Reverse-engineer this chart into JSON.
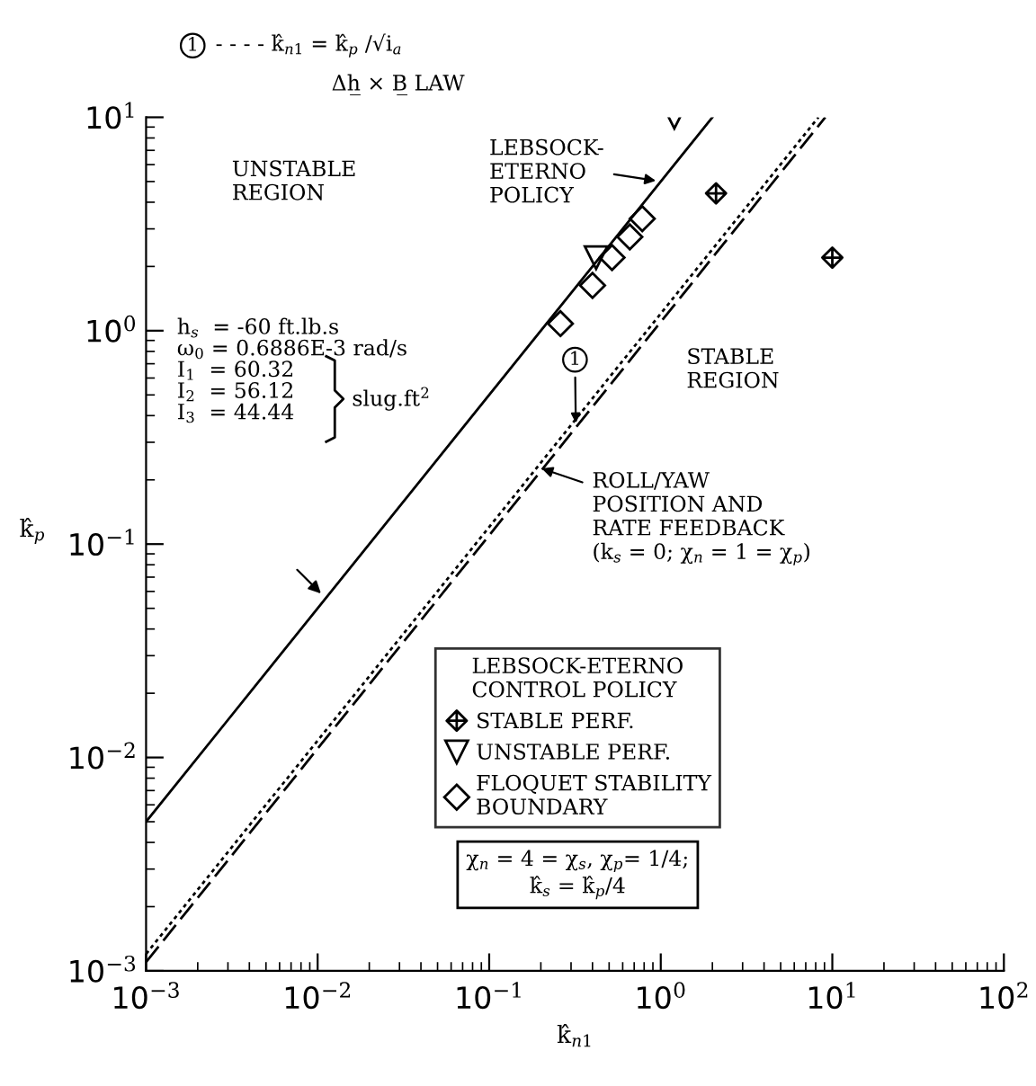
{
  "chart_data": {
    "type": "line",
    "xlabel": "k̂$_{n1}$",
    "ylabel": "k̂$_{p}$",
    "log": "xy",
    "xlim": [
      0.001,
      100
    ],
    "ylim": [
      0.001,
      10
    ],
    "xticks": [
      {
        "value": 0.001,
        "label": "10$^{−3}$"
      },
      {
        "value": 0.01,
        "label": "10$^{−2}$"
      },
      {
        "value": 0.1,
        "label": "10$^{−1}$"
      },
      {
        "value": 1,
        "label": "10$^{0}$"
      },
      {
        "value": 10,
        "label": "10$^{1}$"
      },
      {
        "value": 100,
        "label": "10$^{2}$"
      }
    ],
    "yticks": [
      {
        "value": 0.001,
        "label": "10$^{−3}$"
      },
      {
        "value": 0.01,
        "label": "10$^{−2}$"
      },
      {
        "value": 0.1,
        "label": "10$^{−1}$"
      },
      {
        "value": 1,
        "label": "10$^{0}$"
      },
      {
        "value": 10,
        "label": "10$^{1}$"
      }
    ],
    "grid": false,
    "legend": "bottom right",
    "legend_title": "LEBSOCK-ETERNO\nCONTROL POLICY",
    "series": [
      {
        "color": "#000000",
        "line_style": "solid",
        "x": [
          0.001,
          2
        ],
        "values": [
          0.005,
          10
        ]
      },
      {
        "color": "#000000",
        "line_style": "dashed",
        "x": [
          0.001,
          9.1
        ],
        "values": [
          0.0011,
          10
        ]
      },
      {
        "color": "#000000",
        "line_style": "dotted",
        "x": [
          0.001,
          8.3
        ],
        "values": [
          0.0012,
          10
        ]
      },
      {
        "type": "scatter",
        "name": "STABLE PERF.",
        "color": "#000000",
        "marker": "cross",
        "x": [
          2.1,
          10
        ],
        "values": [
          4.4,
          2.2
        ]
      },
      {
        "type": "scatter",
        "name": "UNSTABLE PERF.",
        "color": "#000000",
        "marker": "triangle",
        "x": [
          1.2,
          0.42
        ],
        "values": [
          10,
          2.2
        ]
      },
      {
        "type": "scatter",
        "name": "FLOQUET STABILITY\nBOUNDARY",
        "color": "#000000",
        "marker": "diamond",
        "x": [
          0.26,
          0.4,
          0.52,
          0.66,
          0.78
        ],
        "values": [
          1.08,
          1.63,
          2.2,
          2.75,
          3.35
        ]
      }
    ],
    "annotations": [
      "1",
      "- - - - k̂$_{n1}$ = k̂$_{p}$ /√i$_{a}$",
      "Δh̲ × B̲ LAW",
      "UNSTABLE\nREGION",
      "STABLE\nREGION",
      {
        "text": "LEBSOCK-\nETERNO\nPOLICY",
        "x": 1.0,
        "y": 5
      },
      {
        "text": "1",
        "x": 0.32,
        "y": 0.35
      },
      "ROLL/YAW\nPOSITION AND\nRATE FEEDBACK\n(k$_{s}$ = 0; χ$_{n}$ = 1 = χ$_{p}$)",
      "h$_{s}$  = -60 ft.lb.s\nω$_{0}$ = 0.6886E-3 rad/s\nI$_{1}$  = 60.32\nI$_{2}$  = 56.12\nI$_{3}$  = 44.44",
      "slug.ft$^{2}$",
      "χ$_{n}$ = 4 = χ$_{s}$, χ$_{p}$= 1/4;\nk̂$_{s}$ = k̂$_{p}$/4"
    ]
  }
}
